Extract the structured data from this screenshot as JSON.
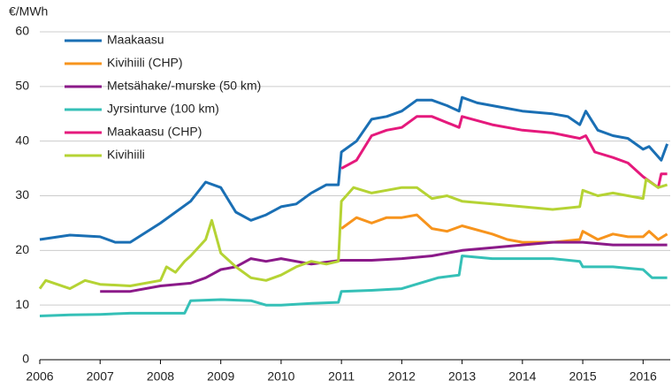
{
  "chart_data": {
    "type": "line",
    "y_label": "€/MWh",
    "xlim": [
      2006,
      2016.45
    ],
    "xticks": [
      2006,
      2007,
      2008,
      2009,
      2010,
      2011,
      2012,
      2013,
      2014,
      2015,
      2016
    ],
    "ylim": [
      0,
      60
    ],
    "yticks": [
      0,
      10,
      20,
      30,
      40,
      50,
      60
    ],
    "grid": true,
    "legend": "top-left",
    "series": [
      {
        "name": "Maakaasu",
        "color": "#1a6fb4",
        "x": [
          2006,
          2006.5,
          2007,
          2007.25,
          2007.5,
          2008,
          2008.5,
          2008.75,
          2009,
          2009.25,
          2009.5,
          2009.75,
          2010,
          2010.25,
          2010.5,
          2010.75,
          2010.95,
          2011,
          2011.25,
          2011.5,
          2011.75,
          2012,
          2012.25,
          2012.5,
          2012.75,
          2012.95,
          2013,
          2013.25,
          2013.5,
          2013.75,
          2014,
          2014.5,
          2014.75,
          2014.95,
          2015.05,
          2015.25,
          2015.5,
          2015.75,
          2016,
          2016.1,
          2016.3,
          2016.4
        ],
        "values": [
          22,
          22.8,
          22.5,
          21.5,
          21.5,
          25,
          29,
          32.5,
          31.5,
          27,
          25.5,
          26.5,
          28,
          28.5,
          30.5,
          32,
          32,
          38,
          40,
          44,
          44.5,
          45.5,
          47.5,
          47.5,
          46.5,
          45.5,
          48,
          47,
          46.5,
          46,
          45.5,
          45,
          44.5,
          43,
          45.5,
          42,
          41,
          40.5,
          38.5,
          39,
          36.5,
          39.5
        ]
      },
      {
        "name": "Kivihiili (CHP)",
        "color": "#f7941d",
        "x": [
          2011,
          2011.25,
          2011.5,
          2011.75,
          2012,
          2012.25,
          2012.5,
          2012.75,
          2013,
          2013.5,
          2013.75,
          2014,
          2014.5,
          2014.95,
          2015,
          2015.25,
          2015.5,
          2015.75,
          2016,
          2016.1,
          2016.25,
          2016.4
        ],
        "values": [
          24,
          26,
          25,
          26,
          26,
          26.5,
          24,
          23.5,
          24.5,
          23,
          22,
          21.5,
          21.5,
          22,
          23.5,
          22,
          23,
          22.5,
          22.5,
          23.5,
          22,
          23
        ]
      },
      {
        "name": "Metsähake/-murske (50 km)",
        "color": "#8b1a89",
        "x": [
          2007,
          2007.5,
          2008,
          2008.5,
          2008.75,
          2009,
          2009.25,
          2009.5,
          2009.75,
          2010,
          2010.5,
          2011,
          2011.5,
          2012,
          2012.5,
          2013,
          2013.5,
          2014,
          2014.5,
          2015,
          2015.5,
          2016,
          2016.4
        ],
        "values": [
          12.5,
          12.5,
          13.5,
          14,
          15,
          16.5,
          17,
          18.5,
          18,
          18.5,
          17.5,
          18.2,
          18.2,
          18.5,
          19,
          20,
          20.5,
          21,
          21.5,
          21.5,
          21,
          21,
          21
        ]
      },
      {
        "name": "Jyrsinturve (100 km)",
        "color": "#35c0b7",
        "x": [
          2006,
          2006.5,
          2007,
          2007.5,
          2008,
          2008.4,
          2008.5,
          2009,
          2009.5,
          2009.75,
          2010,
          2010.5,
          2010.95,
          2011,
          2011.5,
          2012,
          2012.3,
          2012.6,
          2012.95,
          2013,
          2013.5,
          2014,
          2014.5,
          2014.95,
          2015,
          2015.5,
          2016,
          2016.15,
          2016.4
        ],
        "values": [
          8,
          8.2,
          8.3,
          8.5,
          8.5,
          8.5,
          10.8,
          11,
          10.8,
          10,
          10,
          10.3,
          10.5,
          12.5,
          12.7,
          13,
          14,
          15,
          15.5,
          19,
          18.5,
          18.5,
          18.5,
          18,
          17,
          17,
          16.5,
          15,
          15
        ]
      },
      {
        "name": "Maakaasu (CHP)",
        "color": "#e5197c",
        "x": [
          2011,
          2011.25,
          2011.5,
          2011.75,
          2012,
          2012.25,
          2012.5,
          2012.95,
          2013,
          2013.5,
          2014,
          2014.5,
          2014.95,
          2015.05,
          2015.2,
          2015.5,
          2015.75,
          2016,
          2016.25,
          2016.3,
          2016.4
        ],
        "values": [
          35,
          36.5,
          41,
          42,
          42.5,
          44.5,
          44.5,
          42.5,
          44.5,
          43,
          42,
          41.5,
          40.5,
          41,
          38,
          37,
          36,
          33.5,
          31.5,
          34,
          34
        ]
      },
      {
        "name": "Kivihiili",
        "color": "#b5d334",
        "x": [
          2006,
          2006.1,
          2006.5,
          2006.75,
          2007,
          2007.5,
          2008,
          2008.1,
          2008.25,
          2008.4,
          2008.5,
          2008.75,
          2008.85,
          2009,
          2009.25,
          2009.5,
          2009.75,
          2010,
          2010.25,
          2010.5,
          2010.75,
          2010.95,
          2011,
          2011.2,
          2011.5,
          2011.75,
          2012,
          2012.25,
          2012.5,
          2012.75,
          2013,
          2013.5,
          2014,
          2014.5,
          2014.95,
          2015,
          2015.25,
          2015.5,
          2015.75,
          2016,
          2016.05,
          2016.25,
          2016.4
        ],
        "values": [
          13,
          14.5,
          13,
          14.5,
          13.8,
          13.5,
          14.5,
          17,
          16,
          18,
          19,
          22,
          25.5,
          19.5,
          17,
          15,
          14.5,
          15.5,
          17,
          18,
          17.5,
          18,
          29,
          31.5,
          30.5,
          31,
          31.5,
          31.5,
          29.5,
          30,
          29,
          28.5,
          28,
          27.5,
          28,
          31,
          30,
          30.5,
          30,
          29.5,
          33,
          31.5,
          32
        ]
      }
    ]
  }
}
